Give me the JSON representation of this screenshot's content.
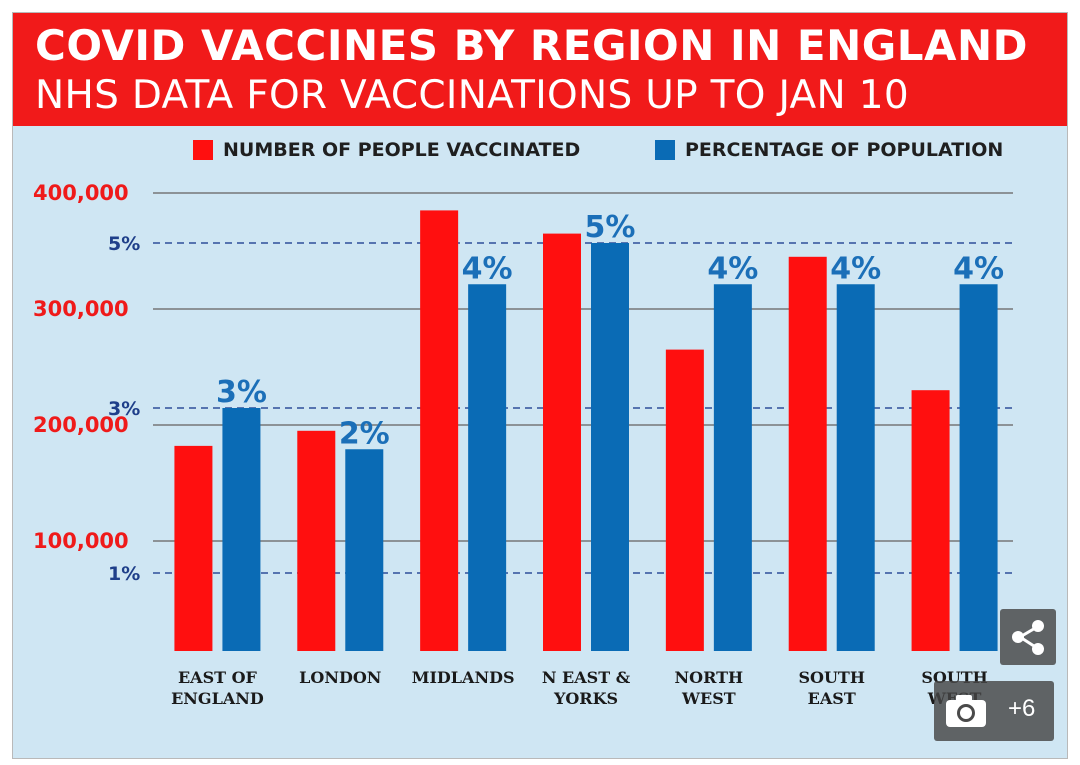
{
  "header": {
    "title": "COVID VACCINES BY REGION IN ENGLAND",
    "subtitle": "NHS DATA FOR VACCINATIONS UP TO JAN 10"
  },
  "overlay": {
    "gallery_count": "+6",
    "share_icon": "share-icon",
    "camera_icon": "camera-icon"
  },
  "colors": {
    "red": "#ff0f0f",
    "blue": "#0a6bb5",
    "pct_label": "#1b6fb8"
  },
  "chart_data": {
    "type": "bar",
    "title": "COVID VACCINES BY REGION IN ENGLAND",
    "subtitle": "NHS DATA FOR VACCINATIONS UP TO JAN 10",
    "categories": [
      [
        "EAST OF",
        "ENGLAND"
      ],
      [
        "LONDON"
      ],
      [
        "MIDLANDS"
      ],
      [
        "N EAST &",
        "YORKS"
      ],
      [
        "NORTH",
        "WEST"
      ],
      [
        "SOUTH",
        "EAST"
      ],
      [
        "SOUTH",
        "WEST"
      ]
    ],
    "series": [
      {
        "name": "NUMBER OF PEOPLE VACCINATED",
        "axis": "left",
        "values": [
          182000,
          195000,
          385000,
          365000,
          265000,
          345000,
          230000
        ]
      },
      {
        "name": "PERCENTAGE OF POPULATION",
        "axis": "right",
        "values": [
          3.0,
          2.5,
          4.5,
          5.0,
          4.5,
          4.5,
          4.5
        ],
        "labels": [
          "3%",
          "2%",
          "4%",
          "5%",
          "4%",
          "4%",
          "4%"
        ]
      }
    ],
    "left_axis": {
      "ticks": [
        100000,
        200000,
        300000,
        400000
      ],
      "tick_labels": [
        "100,000",
        "200,000",
        "300,000",
        "400,000"
      ],
      "range": [
        5000,
        400000
      ]
    },
    "right_axis": {
      "ticks": [
        1,
        3,
        5
      ],
      "tick_labels": [
        "1%",
        "3%",
        "5%"
      ],
      "range": [
        1,
        5
      ]
    },
    "legend": "top",
    "grid": true
  }
}
